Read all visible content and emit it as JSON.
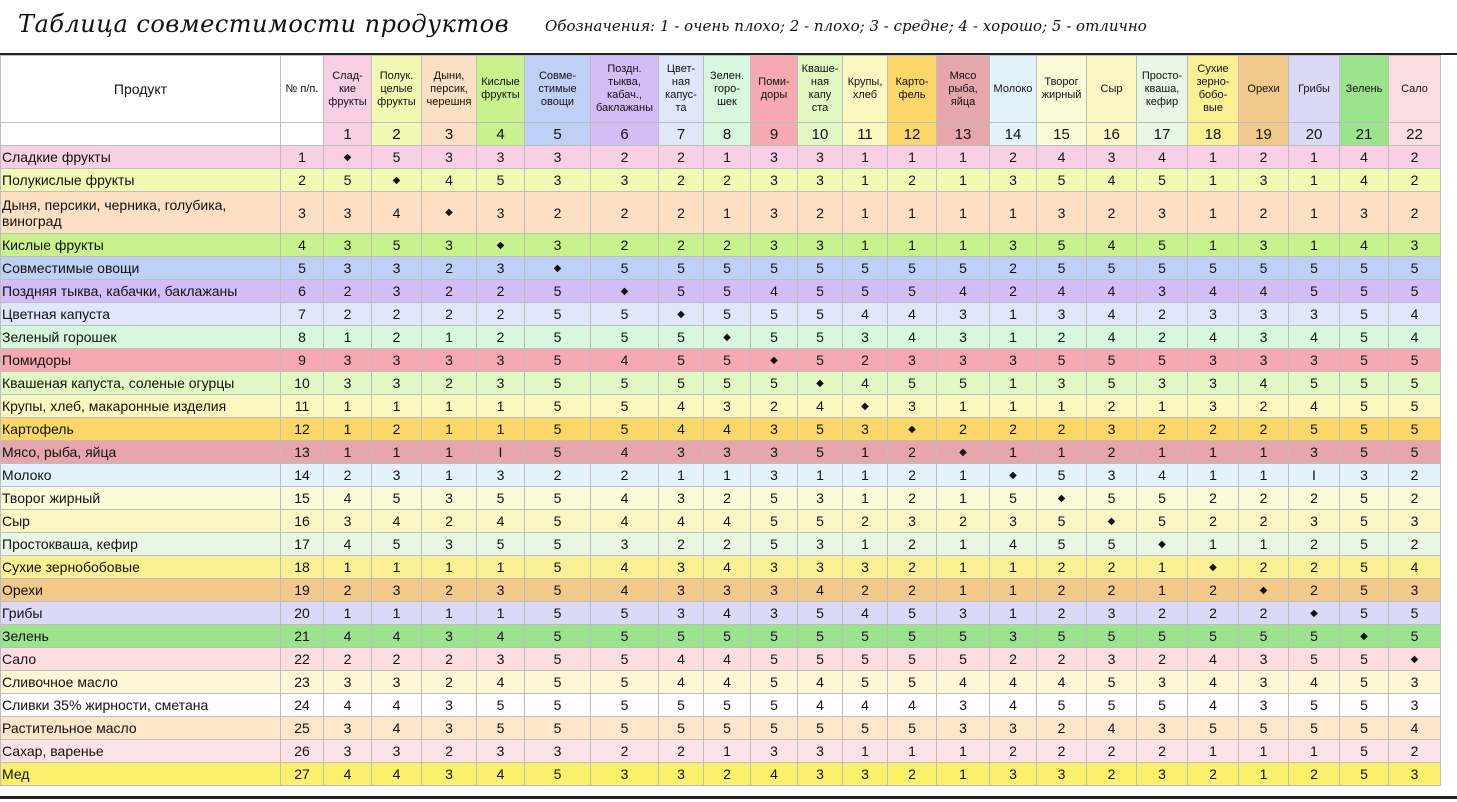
{
  "title": "Таблица совместимости продуктов",
  "legend": "Обозначения: 1 - очень плохо; 2 - плохо; 3 - средне; 4 - хорошо; 5 - отлично",
  "header": {
    "product_label": "Продукт",
    "num_label": "№ п/п.",
    "columns": [
      {
        "label": "Слад-\nкие\nфрукты",
        "num": "1",
        "color": "#f9cfe6"
      },
      {
        "label": "Полук.\nцелые\nфрукты",
        "num": "2",
        "color": "#f2f9b3"
      },
      {
        "label": "Дыни,\nперсик,\nчерешня",
        "num": "3",
        "color": "#fde0c4"
      },
      {
        "label": "Кислые\nфрукты",
        "num": "4",
        "color": "#c9f28f"
      },
      {
        "label": "Совме-\nстимые\nовощи",
        "num": "5",
        "color": "#bfd0f6"
      },
      {
        "label": "Поздн.\nтыква,\nкабач.,\nбаклажаны",
        "num": "6",
        "color": "#d4bdf6"
      },
      {
        "label": "Цвет-\nная\nкапус-\nта",
        "num": "7",
        "color": "#dfe8fb"
      },
      {
        "label": "Зелен.\nгоро-\nшек",
        "num": "8",
        "color": "#d8f8de"
      },
      {
        "label": "Поми-\nдоры",
        "num": "9",
        "color": "#f6a9b1"
      },
      {
        "label": "Кваше-\nная\nкапу\nста",
        "num": "10",
        "color": "#e3f9c3"
      },
      {
        "label": "Крупы,\nхлеб",
        "num": "11",
        "color": "#fbf8bf"
      },
      {
        "label": "Карто-\nфель",
        "num": "12",
        "color": "#fbd76a"
      },
      {
        "label": "Мясо\nрыба,\nяйца",
        "num": "13",
        "color": "#e5a7a9"
      },
      {
        "label": "Молоко",
        "num": "14",
        "color": "#e3f3fb"
      },
      {
        "label": "Творог\nжирный",
        "num": "15",
        "color": "#fbfbd9"
      },
      {
        "label": "Сыр",
        "num": "16",
        "color": "#fbf7c5"
      },
      {
        "label": "Просто-\nкваша,\nкефир",
        "num": "17",
        "color": "#e8f8e4"
      },
      {
        "label": "Сухие\nзерно-\nбобо-\nвые",
        "num": "18",
        "color": "#fbf094"
      },
      {
        "label": "Орехи",
        "num": "19",
        "color": "#f1c98a"
      },
      {
        "label": "Грибы",
        "num": "20",
        "color": "#dcd8f8"
      },
      {
        "label": "Зелень",
        "num": "21",
        "color": "#9be38c"
      },
      {
        "label": "Сало",
        "num": "22",
        "color": "#fcdde0"
      }
    ]
  },
  "rows": [
    {
      "name": "Сладкие фрукты",
      "num": "1",
      "color": "#f9cfe6",
      "values": [
        "◆",
        "5",
        "3",
        "3",
        "3",
        "2",
        "2",
        "1",
        "3",
        "3",
        "1",
        "1",
        "1",
        "2",
        "4",
        "3",
        "4",
        "1",
        "2",
        "1",
        "4",
        "2"
      ]
    },
    {
      "name": "Полукислые фрукты",
      "num": "2",
      "color": "#f2f9b3",
      "values": [
        "5",
        "◆",
        "4",
        "5",
        "3",
        "3",
        "2",
        "2",
        "3",
        "3",
        "1",
        "2",
        "1",
        "3",
        "5",
        "4",
        "5",
        "1",
        "3",
        "1",
        "4",
        "2"
      ]
    },
    {
      "name": "Дыня, персики, черника, голубика, виноград",
      "num": "3",
      "color": "#fde0c4",
      "values": [
        "3",
        "4",
        "◆",
        "3",
        "2",
        "2",
        "2",
        "1",
        "3",
        "2",
        "1",
        "1",
        "1",
        "1",
        "3",
        "2",
        "3",
        "1",
        "2",
        "1",
        "3",
        "2"
      ]
    },
    {
      "name": "Кислые фрукты",
      "num": "4",
      "color": "#c9f28f",
      "values": [
        "3",
        "5",
        "3",
        "◆",
        "3",
        "2",
        "2",
        "2",
        "3",
        "3",
        "1",
        "1",
        "1",
        "3",
        "5",
        "4",
        "5",
        "1",
        "3",
        "1",
        "4",
        "3"
      ]
    },
    {
      "name": "Совместимые овощи",
      "num": "5",
      "color": "#bfd0f6",
      "values": [
        "3",
        "3",
        "2",
        "3",
        "◆",
        "5",
        "5",
        "5",
        "5",
        "5",
        "5",
        "5",
        "5",
        "2",
        "5",
        "5",
        "5",
        "5",
        "5",
        "5",
        "5",
        "5"
      ]
    },
    {
      "name": "Поздняя тыква, кабачки, баклажаны",
      "num": "6",
      "color": "#d4bdf6",
      "values": [
        "2",
        "3",
        "2",
        "2",
        "5",
        "◆",
        "5",
        "5",
        "4",
        "5",
        "5",
        "5",
        "4",
        "2",
        "4",
        "4",
        "3",
        "4",
        "4",
        "5",
        "5",
        "5"
      ]
    },
    {
      "name": "Цветная капуста",
      "num": "7",
      "color": "#dfe8fb",
      "values": [
        "2",
        "2",
        "2",
        "2",
        "5",
        "5",
        "◆",
        "5",
        "5",
        "5",
        "4",
        "4",
        "3",
        "1",
        "3",
        "4",
        "2",
        "3",
        "3",
        "3",
        "5",
        "4"
      ]
    },
    {
      "name": "Зеленый горошек",
      "num": "8",
      "color": "#d8f8de",
      "values": [
        "1",
        "2",
        "1",
        "2",
        "5",
        "5",
        "5",
        "◆",
        "5",
        "5",
        "3",
        "4",
        "3",
        "1",
        "2",
        "4",
        "2",
        "4",
        "3",
        "4",
        "5",
        "4"
      ]
    },
    {
      "name": "Помидоры",
      "num": "9",
      "color": "#f6a9b1",
      "values": [
        "3",
        "3",
        "3",
        "3",
        "5",
        "4",
        "5",
        "5",
        "◆",
        "5",
        "2",
        "3",
        "3",
        "3",
        "5",
        "5",
        "5",
        "3",
        "3",
        "3",
        "5",
        "5"
      ]
    },
    {
      "name": "Квашеная капуста, соленые огурцы",
      "num": "10",
      "color": "#e3f9c3",
      "values": [
        "3",
        "3",
        "2",
        "3",
        "5",
        "5",
        "5",
        "5",
        "5",
        "◆",
        "4",
        "5",
        "5",
        "1",
        "3",
        "5",
        "3",
        "3",
        "4",
        "5",
        "5",
        "5"
      ]
    },
    {
      "name": "Крупы, хлеб, макаронные изделия",
      "num": "11",
      "color": "#fbf8bf",
      "values": [
        "1",
        "1",
        "1",
        "1",
        "5",
        "5",
        "4",
        "3",
        "2",
        "4",
        "◆",
        "3",
        "1",
        "1",
        "1",
        "2",
        "1",
        "3",
        "2",
        "4",
        "5",
        "5"
      ]
    },
    {
      "name": "Картофель",
      "num": "12",
      "color": "#fbd76a",
      "values": [
        "1",
        "2",
        "1",
        "1",
        "5",
        "5",
        "4",
        "4",
        "3",
        "5",
        "3",
        "◆",
        "2",
        "2",
        "2",
        "3",
        "2",
        "2",
        "2",
        "5",
        "5",
        "5"
      ]
    },
    {
      "name": "Мясо, рыба, яйца",
      "num": "13",
      "color": "#e5a7a9",
      "values": [
        "1",
        "1",
        "1",
        "I",
        "5",
        "4",
        "3",
        "3",
        "3",
        "5",
        "1",
        "2",
        "◆",
        "1",
        "1",
        "2",
        "1",
        "1",
        "1",
        "3",
        "5",
        "5"
      ]
    },
    {
      "name": "Молоко",
      "num": "14",
      "color": "#e3f3fb",
      "values": [
        "2",
        "3",
        "1",
        "3",
        "2",
        "2",
        "1",
        "1",
        "3",
        "1",
        "1",
        "2",
        "1",
        "◆",
        "5",
        "3",
        "4",
        "1",
        "1",
        "I",
        "3",
        "2"
      ]
    },
    {
      "name": "Творог жирный",
      "num": "15",
      "color": "#fbfbd9",
      "values": [
        "4",
        "5",
        "3",
        "5",
        "5",
        "4",
        "3",
        "2",
        "5",
        "3",
        "1",
        "2",
        "1",
        "5",
        "◆",
        "5",
        "5",
        "2",
        "2",
        "2",
        "5",
        "2"
      ]
    },
    {
      "name": "Сыр",
      "num": "16",
      "color": "#fbf7c5",
      "values": [
        "3",
        "4",
        "2",
        "4",
        "5",
        "4",
        "4",
        "4",
        "5",
        "5",
        "2",
        "3",
        "2",
        "3",
        "5",
        "◆",
        "5",
        "2",
        "2",
        "3",
        "5",
        "3"
      ]
    },
    {
      "name": "Простокваша, кефир",
      "num": "17",
      "color": "#e8f8e4",
      "values": [
        "4",
        "5",
        "3",
        "5",
        "5",
        "3",
        "2",
        "2",
        "5",
        "3",
        "1",
        "2",
        "1",
        "4",
        "5",
        "5",
        "◆",
        "1",
        "1",
        "2",
        "5",
        "2"
      ]
    },
    {
      "name": "Сухие зернобобовые",
      "num": "18",
      "color": "#fbf094",
      "values": [
        "1",
        "1",
        "1",
        "1",
        "5",
        "4",
        "3",
        "4",
        "3",
        "3",
        "3",
        "2",
        "1",
        "1",
        "2",
        "2",
        "1",
        "◆",
        "2",
        "2",
        "5",
        "4"
      ]
    },
    {
      "name": "Орехи",
      "num": "19",
      "color": "#f1c98a",
      "values": [
        "2",
        "3",
        "2",
        "3",
        "5",
        "4",
        "3",
        "3",
        "3",
        "4",
        "2",
        "2",
        "1",
        "1",
        "2",
        "2",
        "1",
        "2",
        "◆",
        "2",
        "5",
        "3"
      ]
    },
    {
      "name": "Грибы",
      "num": "20",
      "color": "#dcd8f8",
      "values": [
        "1",
        "1",
        "1",
        "1",
        "5",
        "5",
        "3",
        "4",
        "3",
        "5",
        "4",
        "5",
        "3",
        "1",
        "2",
        "3",
        "2",
        "2",
        "2",
        "◆",
        "5",
        "5"
      ]
    },
    {
      "name": "Зелень",
      "num": "21",
      "color": "#9be38c",
      "values": [
        "4",
        "4",
        "3",
        "4",
        "5",
        "5",
        "5",
        "5",
        "5",
        "5",
        "5",
        "5",
        "5",
        "3",
        "5",
        "5",
        "5",
        "5",
        "5",
        "5",
        "◆",
        "5"
      ]
    },
    {
      "name": "Сало",
      "num": "22",
      "color": "#fcdde0",
      "values": [
        "2",
        "2",
        "2",
        "3",
        "5",
        "5",
        "4",
        "4",
        "5",
        "5",
        "5",
        "5",
        "5",
        "2",
        "2",
        "3",
        "2",
        "4",
        "3",
        "5",
        "5",
        "◆"
      ]
    },
    {
      "name": "Сливочное масло",
      "num": "23",
      "color": "#fdf7d6",
      "values": [
        "3",
        "3",
        "2",
        "4",
        "5",
        "5",
        "4",
        "4",
        "5",
        "4",
        "5",
        "5",
        "4",
        "4",
        "4",
        "5",
        "3",
        "4",
        "3",
        "4",
        "5",
        "3"
      ]
    },
    {
      "name": "Сливки 35% жирности, сметана",
      "num": "24",
      "color": "#ffffff",
      "values": [
        "4",
        "4",
        "3",
        "5",
        "5",
        "5",
        "5",
        "5",
        "5",
        "4",
        "4",
        "4",
        "3",
        "4",
        "5",
        "5",
        "5",
        "4",
        "3",
        "5",
        "5",
        "3"
      ]
    },
    {
      "name": "Растительное масло",
      "num": "25",
      "color": "#fde6c9",
      "values": [
        "3",
        "4",
        "3",
        "5",
        "5",
        "5",
        "5",
        "5",
        "5",
        "5",
        "5",
        "5",
        "3",
        "3",
        "2",
        "4",
        "3",
        "5",
        "5",
        "5",
        "5",
        "4"
      ]
    },
    {
      "name": "Сахар, варенье",
      "num": "26",
      "color": "#fde3e6",
      "values": [
        "3",
        "3",
        "2",
        "3",
        "3",
        "2",
        "2",
        "1",
        "3",
        "3",
        "1",
        "1",
        "1",
        "2",
        "2",
        "2",
        "2",
        "1",
        "1",
        "1",
        "5",
        "2"
      ]
    },
    {
      "name": "Мед",
      "num": "27",
      "color": "#fbf06a",
      "values": [
        "4",
        "4",
        "3",
        "4",
        "5",
        "3",
        "3",
        "2",
        "4",
        "3",
        "3",
        "2",
        "1",
        "3",
        "3",
        "2",
        "3",
        "2",
        "1",
        "2",
        "5",
        "3"
      ]
    }
  ]
}
